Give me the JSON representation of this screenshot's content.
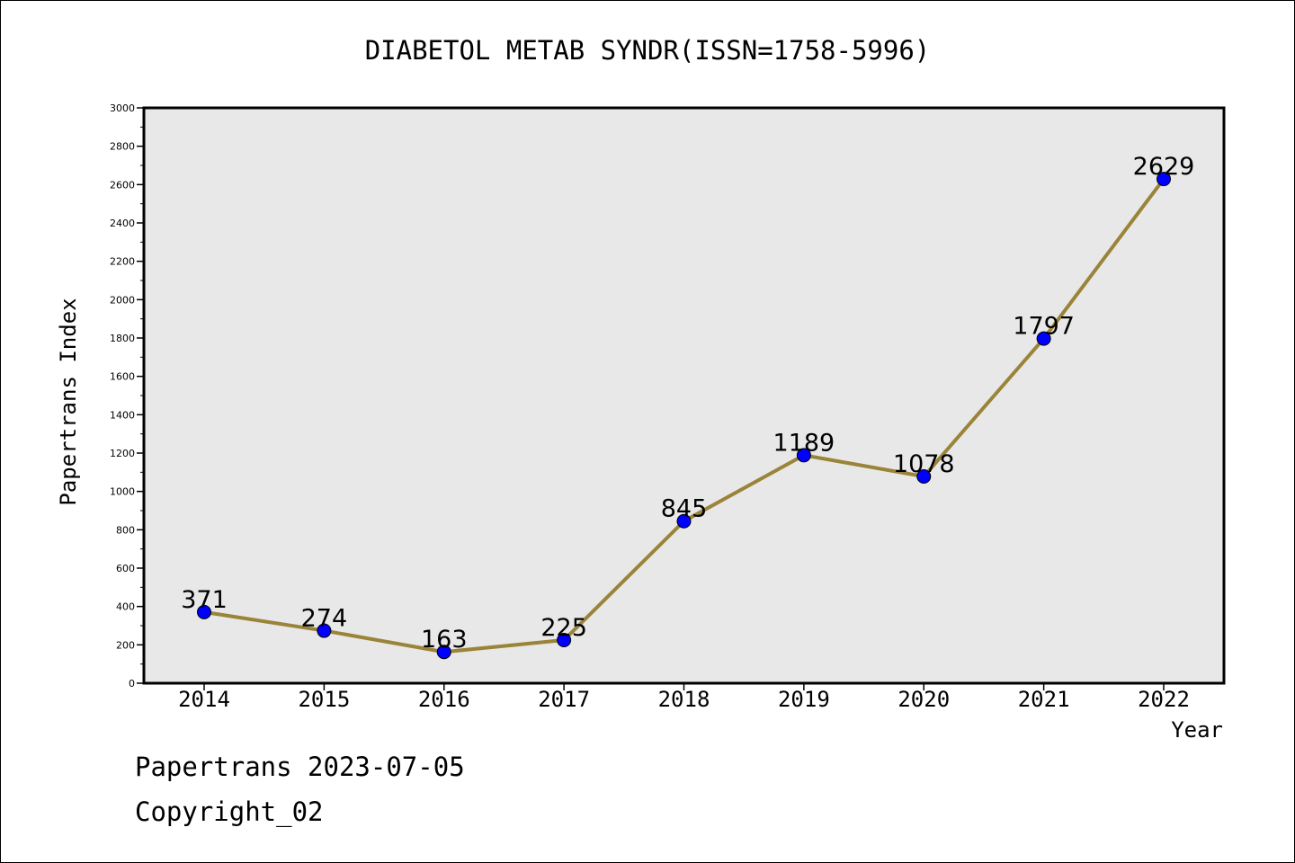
{
  "chart_data": {
    "type": "line",
    "title": "DIABETOL METAB SYNDR(ISSN=1758-5996)",
    "xlabel": "Year",
    "ylabel": "Papertrans Index",
    "categories": [
      "2014",
      "2015",
      "2016",
      "2017",
      "2018",
      "2019",
      "2020",
      "2021",
      "2022"
    ],
    "series": [
      {
        "values": [
          371,
          274,
          163,
          225,
          845,
          1189,
          1078,
          1797,
          2629
        ]
      }
    ],
    "data_labels": [
      "371",
      "274",
      "163",
      "225",
      "845",
      "1189",
      "1078",
      "1797",
      "2629"
    ],
    "ylim": [
      0,
      3000
    ],
    "y_ticks": [
      0,
      200,
      400,
      600,
      800,
      1000,
      1200,
      1400,
      1600,
      1800,
      2000,
      2200,
      2400,
      2600,
      2800,
      3000
    ],
    "grid": false,
    "colors": {
      "line": "#9a8439",
      "marker": "#0000ff",
      "plot_background": "#e8e8e8"
    }
  },
  "footer": {
    "line1": "Papertrans 2023-07-05",
    "line2": "Copyright_02"
  }
}
